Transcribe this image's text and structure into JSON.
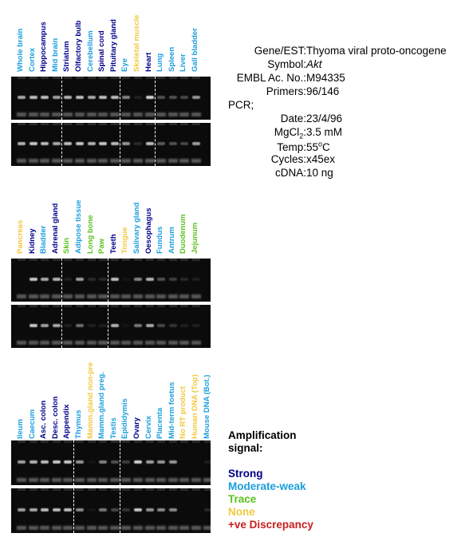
{
  "colors": {
    "strong": "#00008b",
    "moderate": "#1a9fdc",
    "trace": "#5cc21e",
    "none": "#f2c93e",
    "discrepancy": "#c81e1e"
  },
  "panels": [
    {
      "labels": [
        {
          "text": "Whole brain",
          "level": "moderate"
        },
        {
          "text": "Cortex",
          "level": "moderate"
        },
        {
          "text": "Hippocampus",
          "level": "strong"
        },
        {
          "text": "Mid brain",
          "level": "moderate"
        },
        {
          "text": "Striatum",
          "level": "strong"
        },
        {
          "text": "Olfactory bulb",
          "level": "strong"
        },
        {
          "text": "Cerebellum",
          "level": "moderate"
        },
        {
          "text": "Spinal cord",
          "level": "strong"
        },
        {
          "text": "Pituitary gland",
          "level": "strong"
        },
        {
          "text": "Eye",
          "level": "moderate"
        },
        {
          "text": "Skeletal muscle",
          "level": "none"
        },
        {
          "text": "Heart",
          "level": "strong"
        },
        {
          "text": "Lung",
          "level": "moderate"
        },
        {
          "text": "Spleen",
          "level": "moderate"
        },
        {
          "text": "Liver",
          "level": "moderate"
        },
        {
          "text": "Gall bladder",
          "level": "moderate"
        }
      ],
      "lane_intensity_top": [
        0.8,
        0.9,
        0.9,
        0.75,
        0.85,
        0.9,
        0.8,
        0.9,
        0.9,
        0.6,
        0.1,
        1.0,
        0.35,
        0.35,
        0.3,
        0.7
      ],
      "lane_intensity_bottom": [
        0.85,
        0.95,
        0.9,
        0.8,
        0.9,
        0.95,
        0.85,
        0.95,
        0.9,
        0.7,
        0.15,
        0.9,
        0.4,
        0.35,
        0.3,
        0.75
      ],
      "dividers_after": [
        3,
        8,
        11
      ]
    },
    {
      "labels": [
        {
          "text": "Pancreas",
          "level": "none"
        },
        {
          "text": "Kidney",
          "level": "strong"
        },
        {
          "text": "Bladder",
          "level": "moderate"
        },
        {
          "text": "Adrenal gland",
          "level": "strong"
        },
        {
          "text": "Skin",
          "level": "trace"
        },
        {
          "text": "Adipose tissue",
          "level": "moderate"
        },
        {
          "text": "Long bone",
          "level": "trace"
        },
        {
          "text": "Paw",
          "level": "trace"
        },
        {
          "text": "Teeth",
          "level": "strong"
        },
        {
          "text": "Tongue",
          "level": "none"
        },
        {
          "text": "Salivary gland",
          "level": "moderate"
        },
        {
          "text": "Oesophagus",
          "level": "strong"
        },
        {
          "text": "Fundus",
          "level": "moderate"
        },
        {
          "text": "Antrum",
          "level": "moderate"
        },
        {
          "text": "Duodenum",
          "level": "trace"
        },
        {
          "text": "Jejunum",
          "level": "trace"
        }
      ],
      "lane_intensity_top": [
        0.0,
        0.95,
        0.8,
        0.85,
        0.1,
        0.75,
        0.15,
        0.15,
        0.9,
        0.05,
        0.6,
        0.85,
        0.35,
        0.25,
        0.15,
        0.1
      ],
      "lane_intensity_bottom": [
        0.0,
        0.95,
        0.75,
        0.8,
        0.1,
        0.5,
        0.1,
        0.1,
        0.85,
        0.05,
        0.55,
        0.8,
        0.3,
        0.2,
        0.1,
        0.1
      ],
      "dividers_after": [
        3,
        7
      ]
    },
    {
      "labels": [
        {
          "text": "Ileum",
          "level": "moderate"
        },
        {
          "text": "Caecum",
          "level": "moderate"
        },
        {
          "text": "Asc. colon",
          "level": "strong"
        },
        {
          "text": "Desc. colon",
          "level": "strong"
        },
        {
          "text": "Appendix",
          "level": "strong"
        },
        {
          "text": "Thymus",
          "level": "moderate"
        },
        {
          "text": "Mamm.gland non-pre",
          "level": "none"
        },
        {
          "text": "Mamm.gland preg.",
          "level": "moderate"
        },
        {
          "text": "Testis",
          "level": "moderate"
        },
        {
          "text": "Epididymis",
          "level": "moderate"
        },
        {
          "text": "Ovary",
          "level": "strong"
        },
        {
          "text": "Cervix",
          "level": "moderate"
        },
        {
          "text": "Placenta",
          "level": "moderate"
        },
        {
          "text": "Mid-term foetus",
          "level": "moderate"
        },
        {
          "text": "No RT product",
          "level": "none"
        },
        {
          "text": "Human DNA (Top)",
          "level": "none"
        },
        {
          "text": "Mouse DNA (Bot.)",
          "level": "moderate"
        }
      ],
      "lane_intensity_top": [
        0.75,
        0.85,
        0.9,
        0.95,
        0.95,
        0.7,
        0.05,
        0.6,
        0.35,
        0.25,
        1.0,
        0.75,
        0.7,
        0.7,
        0.0,
        0.0,
        0.1
      ],
      "lane_intensity_bottom": [
        0.75,
        0.8,
        0.9,
        0.9,
        0.9,
        0.65,
        0.05,
        0.55,
        0.3,
        0.2,
        0.95,
        0.7,
        0.65,
        0.65,
        0.0,
        0.0,
        0.15
      ],
      "dividers_after": [
        4,
        8
      ]
    }
  ],
  "info": {
    "gene_label": "Gene/EST:",
    "gene_value": "Thyoma viral proto-oncogene",
    "symbol_label": "Symbol:",
    "symbol_value": "Akt",
    "embl_label": "EMBL Ac. No.:",
    "embl_value": "M94335",
    "primers_label": "Primers:",
    "primers_value": "96/146",
    "pcr_label": "PCR;",
    "date_label": "Date:",
    "date_value": "23/4/96",
    "mgcl2_label_a": "MgCl",
    "mgcl2_label_sub": "2",
    "mgcl2_label_b": ":",
    "mgcl2_value": "3.5 mM",
    "temp_label": "Temp:",
    "temp_value_a": "55",
    "temp_value_sup": "o",
    "temp_value_b": "C",
    "cycles_label": "Cycles:",
    "cycles_value": "x45ex",
    "cdna_label": "cDNA:",
    "cdna_value": "10 ng"
  },
  "legend": {
    "title_line1": "Amplification",
    "title_line2": "signal:",
    "strong": "Strong",
    "moderate": "Moderate-weak",
    "trace": "Trace",
    "none": "None",
    "discrepancy": "+ve Discrepancy"
  }
}
